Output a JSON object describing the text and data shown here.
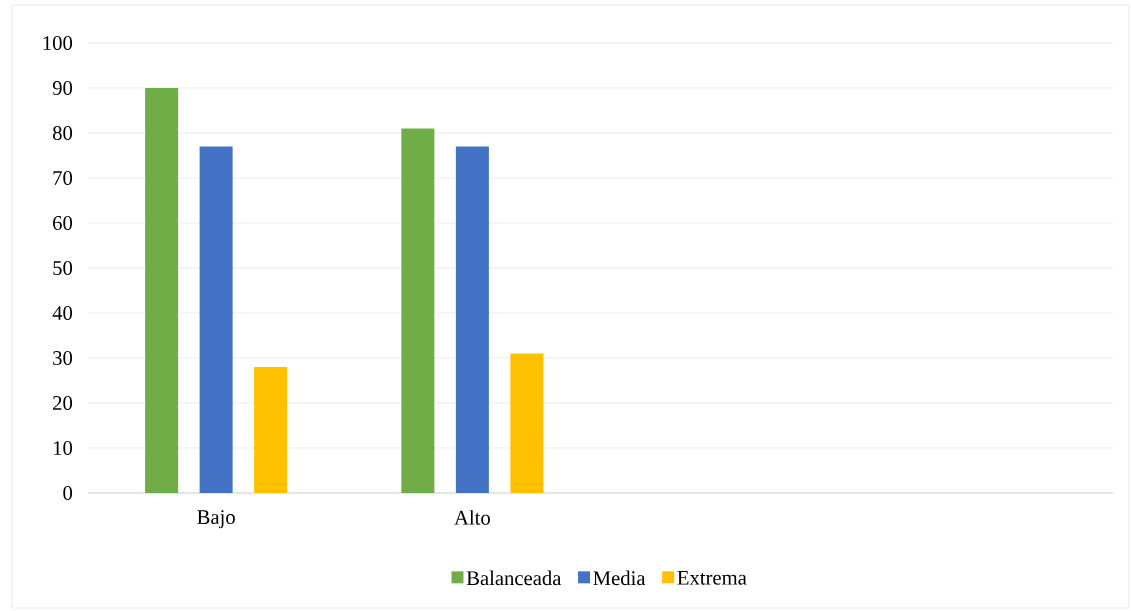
{
  "chart_data": {
    "type": "bar",
    "categories": [
      "Bajo",
      "Alto",
      null,
      null
    ],
    "series": [
      {
        "name": "Balanceada",
        "color": "#70ad47",
        "values": [
          90,
          81,
          null,
          null
        ]
      },
      {
        "name": "Media",
        "color": "#4472c4",
        "values": [
          77,
          77,
          null,
          null
        ]
      },
      {
        "name": "Extrema",
        "color": "#ffc000",
        "values": [
          28,
          31,
          null,
          null
        ]
      }
    ],
    "ylim": [
      0,
      100
    ],
    "yticks": [
      0,
      10,
      20,
      30,
      40,
      50,
      60,
      70,
      80,
      90,
      100
    ],
    "grid": "y",
    "legend": "bottom"
  }
}
